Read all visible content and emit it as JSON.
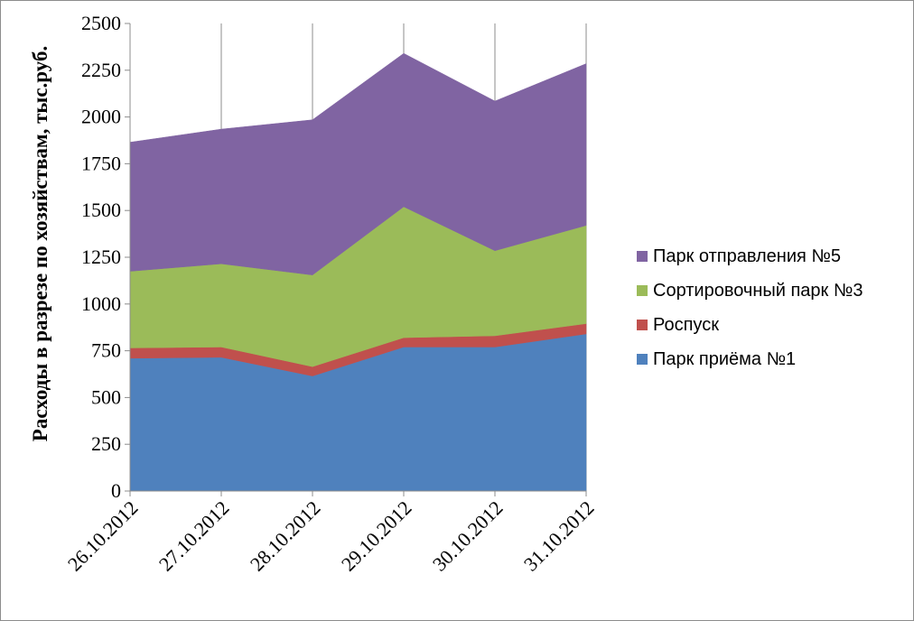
{
  "chart_data": {
    "type": "area",
    "stacked": true,
    "title": "",
    "xlabel": "",
    "ylabel": "Расходы в разрезе по хозяйствам, тыс.руб.",
    "categories": [
      "26.10.2012",
      "27.10.2012",
      "28.10.2012",
      "29.10.2012",
      "30.10.2012",
      "31.10.2012"
    ],
    "ylim": [
      0,
      2500
    ],
    "yticks": [
      "0",
      "250",
      "500",
      "750",
      "1000",
      "1250",
      "1500",
      "1750",
      "2000",
      "2250",
      "2500"
    ],
    "grid": "vertical",
    "legend_position": "right",
    "series": [
      {
        "name": "Парк приёма №1",
        "color": "#4F81BD",
        "values": [
          710,
          715,
          615,
          770,
          770,
          840
        ]
      },
      {
        "name": "Роспуск",
        "color": "#C0504D",
        "values": [
          55,
          55,
          50,
          50,
          60,
          55
        ]
      },
      {
        "name": "Сортировочный парк №3",
        "color": "#9BBB59",
        "values": [
          410,
          445,
          490,
          700,
          455,
          525
        ]
      },
      {
        "name": "Парк отправления №5",
        "color": "#8064A2",
        "values": [
          690,
          720,
          830,
          820,
          800,
          865
        ]
      }
    ]
  }
}
